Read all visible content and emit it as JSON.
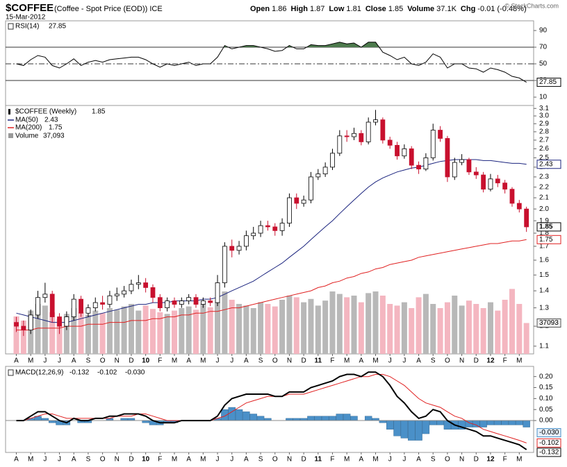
{
  "header": {
    "symbol": "$COFFEE",
    "description": "(Coffee - Spot Price (EOD)) ICE",
    "date": "15-Mar-2012",
    "quote": [
      {
        "label": "Open",
        "value": 1.86
      },
      {
        "label": "High",
        "value": 1.87
      },
      {
        "label": "Low",
        "value": 1.81
      },
      {
        "label": "Close",
        "value": 1.85
      },
      {
        "label": "Volume",
        "value": "37.1K"
      },
      {
        "label": "Chg",
        "value": "-0.01 (-0.48%)"
      }
    ],
    "copyright": "© StockCharts.com"
  },
  "chart_data": [
    {
      "type": "rsi",
      "name": "RSI(14)",
      "color": "#000000",
      "fill_color": "#4d7a4d",
      "ylim": [
        0,
        100
      ],
      "yticks": [
        90,
        70,
        50,
        30,
        10
      ],
      "reference_lines": [
        {
          "value": 70,
          "style": "solid"
        },
        {
          "value": 50,
          "style": "dashdot"
        },
        {
          "value": 30,
          "style": "solid"
        }
      ],
      "values": [
        50,
        48,
        55,
        60,
        58,
        48,
        45,
        50,
        56,
        48,
        52,
        54,
        52,
        55,
        56,
        57,
        58,
        58,
        55,
        50,
        46,
        50,
        48,
        50,
        52,
        48,
        50,
        50,
        58,
        72,
        68,
        70,
        72,
        72,
        70,
        68,
        65,
        66,
        72,
        68,
        68,
        73,
        72,
        72,
        74,
        76,
        74,
        75,
        70,
        76,
        76,
        64,
        60,
        55,
        58,
        50,
        48,
        52,
        62,
        58,
        45,
        50,
        50,
        45,
        44,
        40,
        45,
        43,
        40,
        35,
        33,
        27.85
      ]
    },
    {
      "type": "candlestick",
      "name": "$COFFEE (Weekly)",
      "log_scale": true,
      "ylim": [
        1.07,
        3.14
      ],
      "xlim": [
        -1.5,
        72
      ],
      "yticks": [
        3.1,
        {
          "value": 3,
          "label": "3.0"
        },
        2.9,
        2.8,
        2.7,
        2.6,
        2.5,
        2.4,
        2.3,
        2.2,
        2.1,
        {
          "value": 2,
          "label": "2.0"
        },
        1.9,
        1.8,
        1.7,
        1.6,
        1.5,
        1.4,
        1.3,
        1.2,
        1.1
      ],
      "xticks": [
        {
          "value": 0,
          "label": "A"
        },
        {
          "value": 2,
          "label": "M"
        },
        {
          "value": 4,
          "label": "J"
        },
        {
          "value": 6,
          "label": "J"
        },
        {
          "value": 8,
          "label": "A"
        },
        {
          "value": 10,
          "label": "S"
        },
        {
          "value": 12,
          "label": "O"
        },
        {
          "value": 14,
          "label": "N"
        },
        {
          "value": 16,
          "label": "D"
        },
        {
          "value": 18,
          "label": "10"
        },
        {
          "value": 20,
          "label": "F"
        },
        {
          "value": 22,
          "label": "M"
        },
        {
          "value": 24,
          "label": "A"
        },
        {
          "value": 26,
          "label": "M"
        },
        {
          "value": 28,
          "label": "J"
        },
        {
          "value": 30,
          "label": "J"
        },
        {
          "value": 32,
          "label": "A"
        },
        {
          "value": 34,
          "label": "S"
        },
        {
          "value": 36,
          "label": "O"
        },
        {
          "value": 38,
          "label": "N"
        },
        {
          "value": 40,
          "label": "D"
        },
        {
          "value": 42,
          "label": "11"
        },
        {
          "value": 44,
          "label": "F"
        },
        {
          "value": 46,
          "label": "M"
        },
        {
          "value": 48,
          "label": "A"
        },
        {
          "value": 50,
          "label": "M"
        },
        {
          "value": 52,
          "label": "J"
        },
        {
          "value": 54,
          "label": "J"
        },
        {
          "value": 56,
          "label": "A"
        },
        {
          "value": 58,
          "label": "S"
        },
        {
          "value": 60,
          "label": "O"
        },
        {
          "value": 62,
          "label": "N"
        },
        {
          "value": 64,
          "label": "D"
        },
        {
          "value": 66,
          "label": "12"
        },
        {
          "value": 68,
          "label": "F"
        },
        {
          "value": 70,
          "label": "M"
        }
      ],
      "up_color": "#000000",
      "down_color": "#c8102e",
      "open": [
        1.22,
        1.2,
        1.18,
        1.26,
        1.36,
        1.38,
        1.25,
        1.2,
        1.25,
        1.35,
        1.27,
        1.3,
        1.33,
        1.32,
        1.37,
        1.38,
        1.4,
        1.44,
        1.45,
        1.42,
        1.36,
        1.3,
        1.34,
        1.32,
        1.34,
        1.36,
        1.32,
        1.34,
        1.33,
        1.45,
        1.7,
        1.67,
        1.7,
        1.78,
        1.8,
        1.86,
        1.85,
        1.82,
        1.88,
        2.1,
        2.05,
        2.08,
        2.3,
        2.33,
        2.4,
        2.55,
        2.75,
        2.74,
        2.78,
        2.68,
        2.92,
        2.95,
        2.7,
        2.64,
        2.52,
        2.6,
        2.42,
        2.38,
        2.5,
        2.82,
        2.72,
        2.3,
        2.45,
        2.48,
        2.35,
        2.32,
        2.18,
        2.28,
        2.24,
        2.18,
        2.05,
        2.0
      ],
      "high": [
        1.25,
        1.23,
        1.29,
        1.4,
        1.45,
        1.4,
        1.27,
        1.28,
        1.38,
        1.37,
        1.32,
        1.36,
        1.37,
        1.4,
        1.42,
        1.43,
        1.47,
        1.5,
        1.48,
        1.44,
        1.38,
        1.36,
        1.36,
        1.36,
        1.38,
        1.38,
        1.36,
        1.36,
        1.5,
        1.73,
        1.75,
        1.74,
        1.82,
        1.85,
        1.9,
        1.9,
        1.88,
        1.92,
        2.14,
        2.14,
        2.12,
        2.35,
        2.38,
        2.45,
        2.6,
        2.82,
        2.82,
        2.85,
        2.82,
        2.98,
        3.08,
        2.98,
        2.74,
        2.68,
        2.65,
        2.63,
        2.46,
        2.55,
        2.9,
        2.87,
        2.75,
        2.5,
        2.54,
        2.5,
        2.4,
        2.35,
        2.33,
        2.32,
        2.27,
        2.2,
        2.08,
        2.02
      ],
      "low": [
        1.17,
        1.15,
        1.16,
        1.24,
        1.33,
        1.22,
        1.16,
        1.18,
        1.23,
        1.25,
        1.25,
        1.28,
        1.29,
        1.3,
        1.34,
        1.36,
        1.38,
        1.41,
        1.39,
        1.33,
        1.28,
        1.28,
        1.3,
        1.3,
        1.32,
        1.3,
        1.3,
        1.31,
        1.31,
        1.42,
        1.62,
        1.64,
        1.67,
        1.75,
        1.77,
        1.82,
        1.78,
        1.78,
        1.85,
        2.0,
        2.02,
        2.05,
        2.27,
        2.3,
        2.37,
        2.52,
        2.68,
        2.7,
        2.64,
        2.65,
        2.88,
        2.66,
        2.6,
        2.48,
        2.49,
        2.38,
        2.33,
        2.36,
        2.47,
        2.68,
        2.25,
        2.27,
        2.42,
        2.32,
        2.28,
        2.15,
        2.16,
        2.2,
        2.14,
        2.02,
        1.97,
        1.81
      ],
      "close": [
        1.2,
        1.18,
        1.26,
        1.36,
        1.38,
        1.25,
        1.2,
        1.25,
        1.35,
        1.27,
        1.3,
        1.33,
        1.32,
        1.37,
        1.38,
        1.4,
        1.44,
        1.45,
        1.42,
        1.36,
        1.3,
        1.34,
        1.32,
        1.34,
        1.36,
        1.32,
        1.34,
        1.33,
        1.45,
        1.7,
        1.67,
        1.7,
        1.78,
        1.8,
        1.86,
        1.85,
        1.82,
        1.88,
        2.1,
        2.05,
        2.08,
        2.3,
        2.33,
        2.4,
        2.55,
        2.75,
        2.74,
        2.78,
        2.68,
        2.92,
        2.95,
        2.7,
        2.64,
        2.52,
        2.6,
        2.42,
        2.38,
        2.5,
        2.82,
        2.72,
        2.3,
        2.45,
        2.48,
        2.35,
        2.32,
        2.18,
        2.28,
        2.24,
        2.18,
        2.05,
        2.0,
        1.85
      ],
      "overlays": [
        {
          "name": "MA(50)",
          "color": "#1a237e",
          "values": [
            1.27,
            1.26,
            1.25,
            1.24,
            1.23,
            1.22,
            1.22,
            1.22,
            1.23,
            1.24,
            1.25,
            1.26,
            1.27,
            1.28,
            1.29,
            1.3,
            1.31,
            1.32,
            1.32,
            1.33,
            1.33,
            1.33,
            1.34,
            1.34,
            1.34,
            1.34,
            1.35,
            1.35,
            1.36,
            1.38,
            1.4,
            1.42,
            1.44,
            1.46,
            1.49,
            1.52,
            1.55,
            1.58,
            1.62,
            1.66,
            1.7,
            1.75,
            1.8,
            1.85,
            1.9,
            1.96,
            2.02,
            2.08,
            2.14,
            2.2,
            2.25,
            2.29,
            2.32,
            2.35,
            2.37,
            2.39,
            2.4,
            2.42,
            2.44,
            2.46,
            2.47,
            2.48,
            2.48,
            2.48,
            2.48,
            2.47,
            2.47,
            2.46,
            2.45,
            2.44,
            2.44,
            2.43
          ]
        },
        {
          "name": "MA(200)",
          "color": "#e02020",
          "values": [
            1.18,
            1.18,
            1.18,
            1.19,
            1.19,
            1.19,
            1.19,
            1.2,
            1.2,
            1.2,
            1.21,
            1.21,
            1.21,
            1.22,
            1.22,
            1.22,
            1.23,
            1.23,
            1.23,
            1.24,
            1.24,
            1.25,
            1.25,
            1.26,
            1.26,
            1.27,
            1.27,
            1.28,
            1.28,
            1.29,
            1.3,
            1.3,
            1.31,
            1.32,
            1.33,
            1.34,
            1.35,
            1.36,
            1.37,
            1.38,
            1.39,
            1.4,
            1.42,
            1.43,
            1.45,
            1.46,
            1.48,
            1.49,
            1.51,
            1.52,
            1.54,
            1.55,
            1.57,
            1.58,
            1.59,
            1.6,
            1.62,
            1.63,
            1.64,
            1.65,
            1.66,
            1.67,
            1.68,
            1.69,
            1.7,
            1.71,
            1.72,
            1.72,
            1.73,
            1.74,
            1.74,
            1.75
          ]
        }
      ],
      "volume": {
        "name": "Volume",
        "ylim": [
          0,
          100000
        ],
        "up_color": "#b8b8b8",
        "down_color": "#f4b6c0",
        "last_label": "37,093",
        "values": [
          45000,
          40000,
          52000,
          60000,
          58000,
          50000,
          42000,
          48000,
          55000,
          50000,
          47000,
          52000,
          49000,
          55000,
          53000,
          57000,
          60000,
          52000,
          58000,
          54000,
          50000,
          48000,
          52000,
          55000,
          57000,
          53000,
          60000,
          56000,
          62000,
          75000,
          65000,
          60000,
          58000,
          55000,
          62000,
          60000,
          57000,
          65000,
          70000,
          68000,
          62000,
          66000,
          58000,
          64000,
          75000,
          72000,
          68000,
          70000,
          62000,
          73000,
          75000,
          70000,
          60000,
          58000,
          62000,
          55000,
          68000,
          72000,
          60000,
          55000,
          62000,
          70000,
          58000,
          64000,
          60000,
          55000,
          62000,
          52000,
          65000,
          78000,
          60000,
          37093
        ]
      }
    },
    {
      "type": "macd",
      "name": "MACD(12,26,9)",
      "ylim": [
        -0.145,
        0.24
      ],
      "yticks": [
        {
          "value": 0.2,
          "label": "0.20"
        },
        0.15,
        {
          "value": 0.1,
          "label": "0.10"
        },
        0.05,
        {
          "value": 0,
          "label": "0.00"
        }
      ],
      "macd": {
        "color": "#000000",
        "values": [
          0.0,
          0.0,
          0.02,
          0.04,
          0.04,
          0.02,
          0.0,
          -0.01,
          0.01,
          0.0,
          0.0,
          0.01,
          0.01,
          0.02,
          0.02,
          0.03,
          0.03,
          0.03,
          0.02,
          0.0,
          -0.01,
          -0.01,
          -0.01,
          0.0,
          0.0,
          0.0,
          0.0,
          0.0,
          0.02,
          0.07,
          0.1,
          0.11,
          0.12,
          0.12,
          0.12,
          0.12,
          0.11,
          0.11,
          0.13,
          0.13,
          0.13,
          0.15,
          0.16,
          0.17,
          0.18,
          0.2,
          0.21,
          0.21,
          0.2,
          0.22,
          0.22,
          0.2,
          0.16,
          0.11,
          0.08,
          0.04,
          0.01,
          0.02,
          0.05,
          0.04,
          0.0,
          -0.02,
          -0.03,
          -0.04,
          -0.05,
          -0.07,
          -0.07,
          -0.08,
          -0.09,
          -0.1,
          -0.11,
          -0.132
        ]
      },
      "signal": {
        "color": "#e02020",
        "values": [
          0.0,
          0.0,
          0.01,
          0.02,
          0.03,
          0.03,
          0.02,
          0.01,
          0.01,
          0.01,
          0.01,
          0.01,
          0.01,
          0.01,
          0.02,
          0.02,
          0.02,
          0.03,
          0.03,
          0.02,
          0.01,
          0.0,
          0.0,
          0.0,
          0.0,
          0.0,
          0.0,
          0.0,
          0.01,
          0.02,
          0.04,
          0.06,
          0.08,
          0.09,
          0.1,
          0.11,
          0.11,
          0.11,
          0.12,
          0.12,
          0.12,
          0.13,
          0.14,
          0.15,
          0.16,
          0.17,
          0.18,
          0.19,
          0.2,
          0.2,
          0.21,
          0.21,
          0.2,
          0.18,
          0.16,
          0.13,
          0.1,
          0.08,
          0.07,
          0.06,
          0.04,
          0.02,
          0.01,
          -0.01,
          -0.02,
          -0.04,
          -0.05,
          -0.06,
          -0.07,
          -0.08,
          -0.09,
          -0.102
        ]
      },
      "histogram": {
        "color": "#4a90c8",
        "last_label": "-0.030",
        "values": [
          0,
          0,
          0.01,
          0.02,
          0.01,
          -0.01,
          -0.02,
          -0.02,
          0,
          -0.01,
          -0.01,
          0,
          0,
          0.01,
          0,
          0.01,
          0.01,
          0,
          -0.01,
          -0.02,
          -0.02,
          -0.01,
          -0.01,
          0,
          0,
          0,
          0,
          0,
          0.01,
          0.05,
          0.06,
          0.05,
          0.04,
          0.03,
          0.02,
          0.01,
          0,
          0,
          0.01,
          0.01,
          0.01,
          0.02,
          0.02,
          0.02,
          0.02,
          0.03,
          0.03,
          0.02,
          0,
          0.02,
          0.01,
          -0.01,
          -0.04,
          -0.07,
          -0.08,
          -0.09,
          -0.09,
          -0.06,
          -0.02,
          -0.02,
          -0.04,
          -0.04,
          -0.04,
          -0.03,
          -0.03,
          -0.03,
          -0.02,
          -0.02,
          -0.02,
          -0.02,
          -0.02,
          -0.03
        ]
      }
    }
  ]
}
